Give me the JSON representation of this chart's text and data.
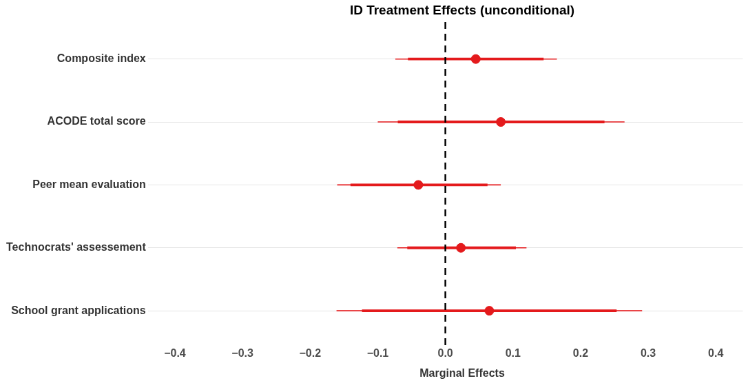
{
  "chart_data": {
    "type": "scatter",
    "title": "ID Treatment Effects (unconditional)",
    "xlabel": "Marginal Effects",
    "orientation": "horizontal",
    "categories": [
      "Composite index",
      "ACODE total score",
      "Peer mean evaluation",
      "Technocrats' assessement",
      "School grant applications"
    ],
    "series": [
      {
        "color": "#e41a1c",
        "values": [
          0.045,
          0.082,
          -0.04,
          0.023,
          0.065
        ],
        "errors": [
          [
            -0.074,
            0.165
          ],
          [
            -0.1,
            0.265
          ],
          [
            -0.16,
            0.082
          ],
          [
            -0.071,
            0.12
          ],
          [
            -0.161,
            0.291
          ]
        ]
      },
      {
        "type": "bar",
        "color": "#e41a1c",
        "base": [
          -0.055,
          -0.07,
          -0.14,
          -0.056,
          -0.123
        ],
        "values": [
          0.2,
          0.305,
          0.202,
          0.16,
          0.376
        ]
      }
    ],
    "marker": "circle",
    "xlim": [
      -0.44,
      0.44
    ],
    "xticks": [
      -0.4,
      -0.3,
      -0.2,
      -0.1,
      {
        "value": 0,
        "label": "0.0"
      },
      0.1,
      0.2,
      0.3,
      0.4
    ],
    "grid": "y",
    "legend": false,
    "ref_lines": [
      {
        "axis": "x",
        "value": 0,
        "color": "#000000",
        "line_style": "dashed"
      }
    ]
  }
}
